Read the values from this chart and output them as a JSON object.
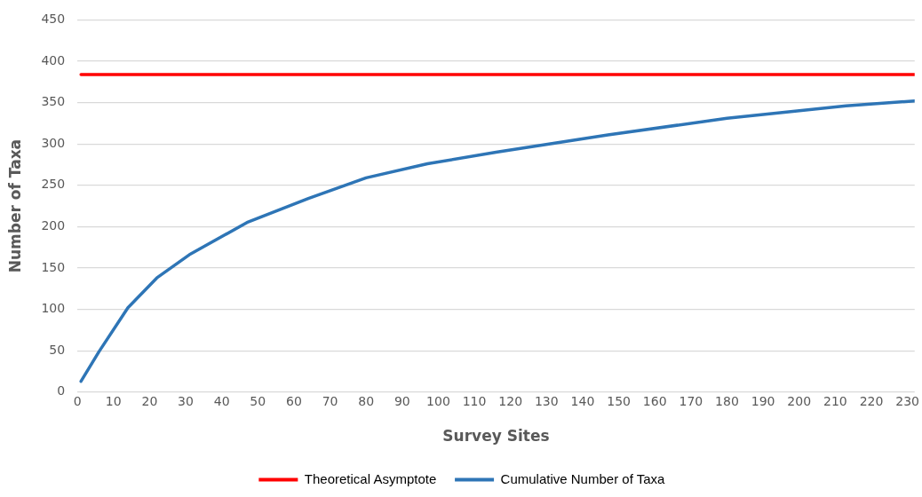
{
  "chart_data": {
    "type": "line",
    "xlabel": "Survey Sites",
    "ylabel": "Number of Taxa",
    "xlim": [
      0,
      232
    ],
    "xticks": [
      0,
      10,
      20,
      30,
      40,
      50,
      60,
      70,
      80,
      90,
      100,
      110,
      120,
      130,
      140,
      150,
      160,
      170,
      180,
      190,
      200,
      210,
      220,
      230
    ],
    "ylim": [
      0,
      450
    ],
    "yticks": [
      0,
      50,
      100,
      150,
      200,
      250,
      300,
      350,
      400,
      450
    ],
    "grid": "y",
    "legend": "bottom",
    "marker": "none",
    "line_style": "solid",
    "series": [
      {
        "name": "Theoretical Asymptote",
        "color": "#ff0000",
        "x": [
          1,
          232
        ],
        "values": [
          384,
          384
        ]
      },
      {
        "name": "Cumulative Number of Taxa",
        "color": "#2e75b6",
        "x": [
          1,
          6,
          14,
          22,
          31,
          47,
          64,
          80,
          97,
          116,
          147,
          180,
          213,
          232
        ],
        "values": [
          13,
          49,
          102,
          138,
          166,
          205,
          234,
          259,
          276,
          290,
          311,
          331,
          346,
          352
        ]
      }
    ]
  }
}
